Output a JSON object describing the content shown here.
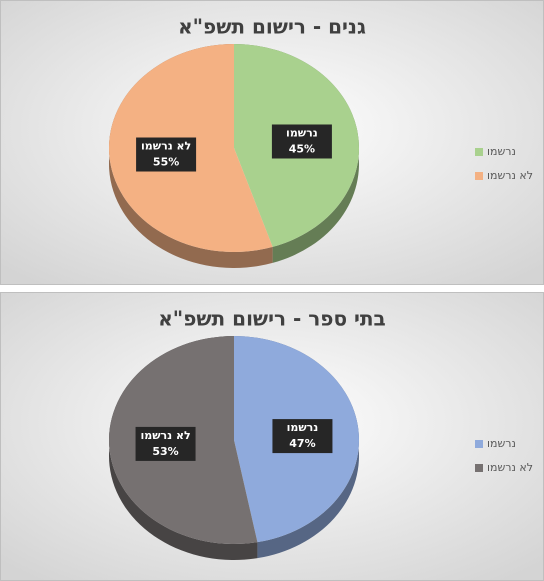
{
  "chart_data": [
    {
      "type": "pie",
      "title": "גנים - רישום תשפ\"א",
      "categories": [
        "נרשמו",
        "לא נרשמו"
      ],
      "values": [
        45,
        55
      ],
      "value_labels": [
        "45%",
        "55%"
      ],
      "colors": [
        "#a9d18e",
        "#f4b183"
      ]
    },
    {
      "type": "pie",
      "title": "בתי ספר - רישום תשפ\"א",
      "categories": [
        "נרשמו",
        "לא נרשמו"
      ],
      "values": [
        47,
        53
      ],
      "value_labels": [
        "47%",
        "53%"
      ],
      "colors": [
        "#8faadc",
        "#767171"
      ]
    }
  ]
}
